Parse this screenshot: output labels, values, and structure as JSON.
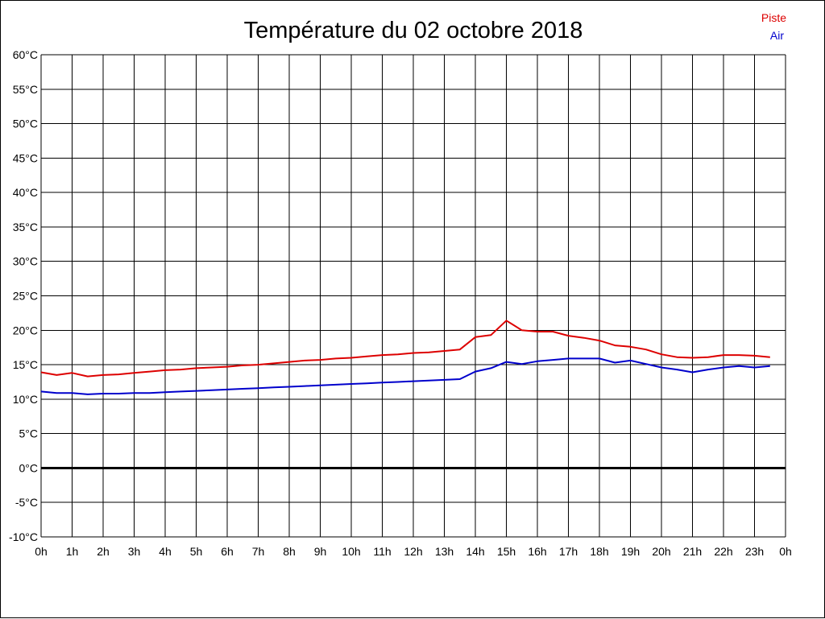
{
  "chart_data": {
    "type": "line",
    "title": "Température du 02 octobre 2018",
    "xlabel": "",
    "ylabel": "",
    "xlim": [
      0,
      24
    ],
    "ylim": [
      -10,
      60
    ],
    "grid": true,
    "legend": "top-right",
    "x_tick_labels": [
      "0h",
      "1h",
      "2h",
      "3h",
      "4h",
      "5h",
      "6h",
      "7h",
      "8h",
      "9h",
      "10h",
      "11h",
      "12h",
      "13h",
      "14h",
      "15h",
      "16h",
      "17h",
      "18h",
      "19h",
      "20h",
      "21h",
      "22h",
      "23h",
      "0h"
    ],
    "y_tick_labels": [
      "60°C",
      "55°C",
      "50°C",
      "45°C",
      "40°C",
      "35°C",
      "30°C",
      "25°C",
      "20°C",
      "15°C",
      "10°C",
      "5°C",
      "0°C",
      "-5°C",
      "-10°C"
    ],
    "y_tick_values": [
      60,
      55,
      50,
      45,
      40,
      35,
      30,
      25,
      20,
      15,
      10,
      5,
      0,
      -5,
      -10
    ],
    "x": [
      0,
      0.5,
      1,
      1.5,
      2,
      2.5,
      3,
      3.5,
      4,
      4.5,
      5,
      5.5,
      6,
      6.5,
      7,
      7.5,
      8,
      8.5,
      9,
      9.5,
      10,
      10.5,
      11,
      11.5,
      12,
      12.5,
      13,
      13.5,
      14,
      14.5,
      15,
      15.5,
      16,
      16.5,
      17,
      17.5,
      18,
      18.5,
      19,
      19.5,
      20,
      20.5,
      21,
      21.5,
      22,
      22.5,
      23,
      23.5
    ],
    "series": [
      {
        "name": "Piste",
        "color": "#dd0000",
        "values": [
          13.9,
          13.5,
          13.8,
          13.3,
          13.5,
          13.6,
          13.8,
          14.0,
          14.2,
          14.3,
          14.5,
          14.6,
          14.7,
          14.9,
          15.0,
          15.2,
          15.4,
          15.6,
          15.7,
          15.9,
          16.0,
          16.2,
          16.4,
          16.5,
          16.7,
          16.8,
          17.0,
          17.2,
          19.0,
          19.3,
          21.4,
          20.0,
          19.8,
          19.8,
          19.2,
          18.9,
          18.5,
          17.8,
          17.6,
          17.2,
          16.5,
          16.1,
          16.0,
          16.1,
          16.4,
          16.4,
          16.3,
          16.1
        ]
      },
      {
        "name": "Air",
        "color": "#0000cc",
        "values": [
          11.1,
          10.9,
          10.9,
          10.7,
          10.8,
          10.8,
          10.9,
          10.9,
          11.0,
          11.1,
          11.2,
          11.3,
          11.4,
          11.5,
          11.6,
          11.7,
          11.8,
          11.9,
          12.0,
          12.1,
          12.2,
          12.3,
          12.4,
          12.5,
          12.6,
          12.7,
          12.8,
          12.9,
          14.0,
          14.5,
          15.4,
          15.1,
          15.5,
          15.7,
          15.9,
          15.9,
          15.9,
          15.3,
          15.6,
          15.1,
          14.6,
          14.3,
          13.9,
          14.3,
          14.6,
          14.8,
          14.6,
          14.8
        ]
      }
    ]
  }
}
